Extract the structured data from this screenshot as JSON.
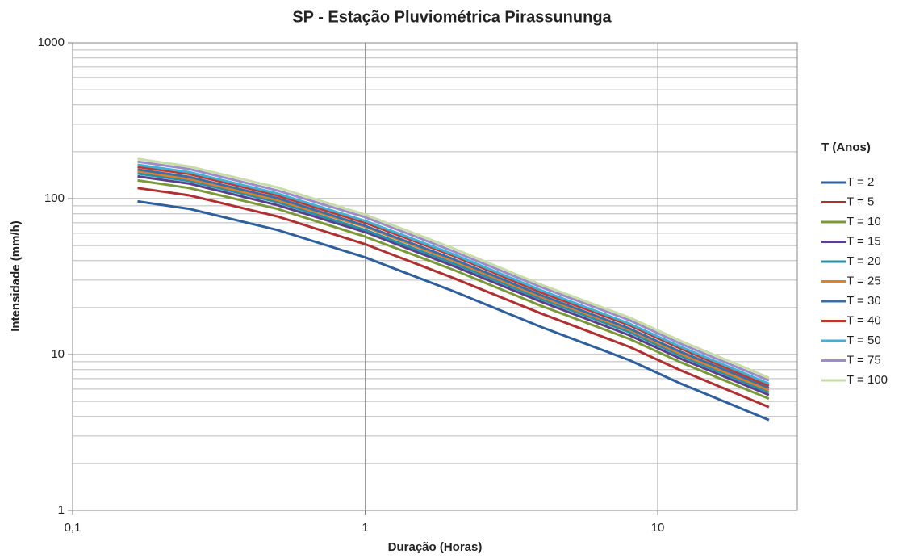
{
  "chart_data": {
    "type": "line",
    "title": "SP - Estação Pluviométrica Pirassununga",
    "x_label": "Duração (Horas)",
    "y_label": "Intensidade (mm/h)",
    "legend_title": "T (Anos)",
    "legend": "right",
    "x_log": true,
    "y_log": true,
    "grid": true,
    "minor_grid": true,
    "xlim": [
      0.1,
      30
    ],
    "xticks": [
      {
        "value": 0.1,
        "label": "0,1"
      },
      1,
      10
    ],
    "ylim": [
      1,
      1000
    ],
    "yticks": [
      1,
      10,
      100,
      1000
    ],
    "x": [
      0.1667,
      0.25,
      0.5,
      1,
      2,
      4,
      8,
      12,
      24
    ],
    "series": [
      {
        "name": "T = 2",
        "color": "#2e5f9e",
        "values": [
          96,
          86,
          63,
          42,
          25.5,
          15,
          9.2,
          6.5,
          3.8
        ]
      },
      {
        "name": "T = 5",
        "color": "#b03030",
        "values": [
          117,
          105,
          77,
          51,
          31,
          18.3,
          11.2,
          7.9,
          4.6
        ]
      },
      {
        "name": "T = 10",
        "color": "#7a9a3a",
        "values": [
          131,
          117,
          86,
          57,
          35,
          20.5,
          12.6,
          8.9,
          5.2
        ]
      },
      {
        "name": "T = 15",
        "color": "#5b3f8a",
        "values": [
          139,
          125,
          91,
          61,
          37,
          21.8,
          13.3,
          9.4,
          5.5
        ]
      },
      {
        "name": "T = 20",
        "color": "#2a90a8",
        "values": [
          145,
          130,
          95,
          63,
          38.5,
          22.7,
          13.9,
          9.8,
          5.7
        ]
      },
      {
        "name": "T = 25",
        "color": "#e07f2a",
        "values": [
          150,
          134,
          98,
          66,
          40,
          23.4,
          14.4,
          10.1,
          5.9
        ]
      },
      {
        "name": "T = 30",
        "color": "#3a6ea8",
        "values": [
          154,
          138,
          101,
          67,
          41,
          24,
          14.7,
          10.4,
          6.1
        ]
      },
      {
        "name": "T = 40",
        "color": "#c0392b",
        "values": [
          160,
          144,
          105,
          70,
          43,
          25,
          15.4,
          10.9,
          6.3
        ]
      },
      {
        "name": "T = 50",
        "color": "#3fb0d8",
        "values": [
          165,
          148,
          108,
          72,
          44,
          25.8,
          15.8,
          11.2,
          6.5
        ]
      },
      {
        "name": "T = 75",
        "color": "#9d8cc8",
        "values": [
          173,
          155,
          113,
          76,
          46,
          27,
          16.6,
          11.7,
          6.8
        ]
      },
      {
        "name": "T = 100",
        "color": "#c8dca8",
        "values": [
          180,
          161,
          118,
          79,
          48,
          28,
          17.3,
          12.2,
          7.1
        ]
      }
    ]
  }
}
